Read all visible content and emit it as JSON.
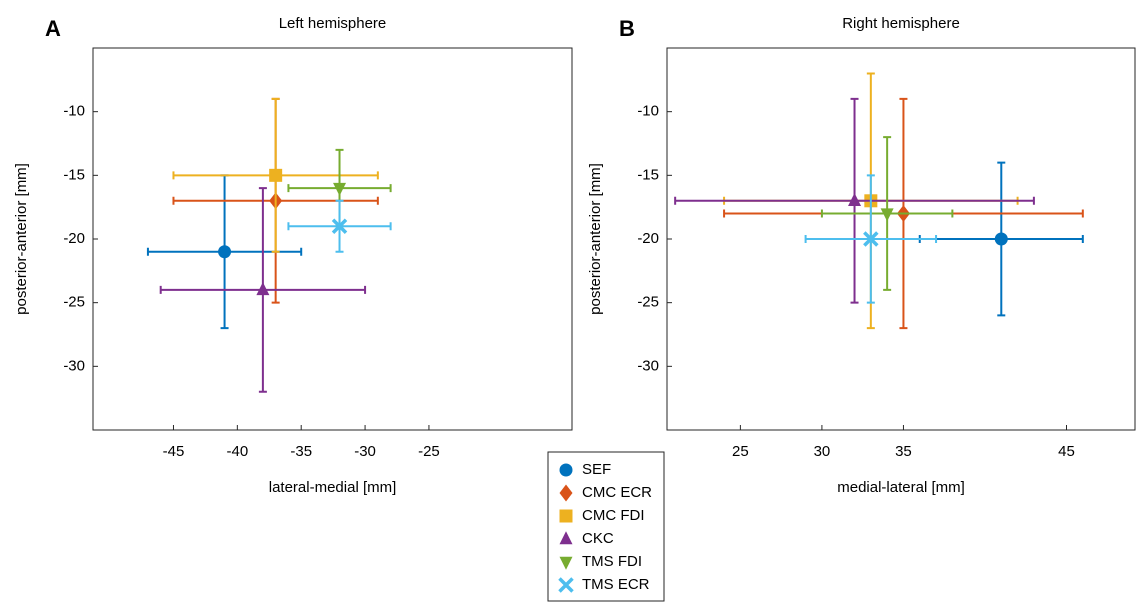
{
  "chart_data": [
    {
      "type": "scatter",
      "panel": "A",
      "title": "Left hemisphere",
      "xlabel": "lateral-medial [mm]",
      "ylabel": "posterior-anterior [mm]",
      "xlim": [
        -51.3,
        -13.8
      ],
      "xticks": [
        -45,
        -40,
        -35,
        -30,
        -25
      ],
      "ylim": [
        -35,
        -5
      ],
      "yticks": [
        -10,
        -15,
        -20,
        -25,
        -30
      ],
      "series": [
        {
          "name": "SEF",
          "color": "#0072bd",
          "marker": "circle",
          "x": [
            -41
          ],
          "values": [
            -21
          ],
          "xerr": [
            6
          ],
          "yerr": [
            6
          ]
        },
        {
          "name": "CMC ECR",
          "color": "#d95319",
          "marker": "diamond",
          "x": [
            -37
          ],
          "values": [
            -17
          ],
          "xerr": [
            8
          ],
          "yerr": [
            8
          ]
        },
        {
          "name": "CMC FDI",
          "color": "#edb120",
          "marker": "square",
          "x": [
            -37
          ],
          "values": [
            -15
          ],
          "xerr": [
            8
          ],
          "yerr": [
            6
          ]
        },
        {
          "name": "CKC",
          "color": "#7e2f8e",
          "marker": "triangle-up",
          "x": [
            -38
          ],
          "values": [
            -24
          ],
          "xerr": [
            8
          ],
          "yerr": [
            8
          ]
        },
        {
          "name": "TMS FDI",
          "color": "#77ac30",
          "marker": "triangle-down",
          "x": [
            -32
          ],
          "values": [
            -16
          ],
          "xerr": [
            4
          ],
          "yerr": [
            3
          ]
        },
        {
          "name": "TMS ECR",
          "color": "#4dbeee",
          "marker": "x",
          "x": [
            -32
          ],
          "values": [
            -19
          ],
          "xerr": [
            4
          ],
          "yerr": [
            2
          ]
        }
      ]
    },
    {
      "type": "scatter",
      "panel": "B",
      "title": "Right hemisphere",
      "xlabel": "medial-lateral [mm]",
      "ylabel": "posterior-anterior [mm]",
      "xlim": [
        20.5,
        49.2
      ],
      "xticks": [
        25,
        30,
        35,
        45
      ],
      "ylim": [
        -35,
        -5
      ],
      "yticks": [
        -10,
        -15,
        -20,
        -25,
        -30
      ],
      "series": [
        {
          "color": "#0072bd",
          "marker": "circle",
          "x": [
            41
          ],
          "values": [
            -20
          ],
          "xerr": [
            5
          ],
          "yerr": [
            6
          ]
        },
        {
          "color": "#d95319",
          "marker": "diamond",
          "x": [
            35
          ],
          "values": [
            -18
          ],
          "xerr": [
            11
          ],
          "yerr": [
            9
          ]
        },
        {
          "color": "#edb120",
          "marker": "square",
          "x": [
            33
          ],
          "values": [
            -17
          ],
          "xerr": [
            9
          ],
          "yerr": [
            10
          ]
        },
        {
          "color": "#7e2f8e",
          "marker": "triangle-up",
          "x": [
            32
          ],
          "values": [
            -17
          ],
          "xerr": [
            11
          ],
          "yerr": [
            8
          ]
        },
        {
          "color": "#77ac30",
          "marker": "triangle-down",
          "x": [
            34
          ],
          "values": [
            -18
          ],
          "xerr": [
            4
          ],
          "yerr": [
            6
          ]
        },
        {
          "color": "#4dbeee",
          "marker": "x",
          "x": [
            33
          ],
          "values": [
            -20
          ],
          "xerr": [
            4
          ],
          "yerr": [
            5
          ]
        }
      ]
    }
  ]
}
